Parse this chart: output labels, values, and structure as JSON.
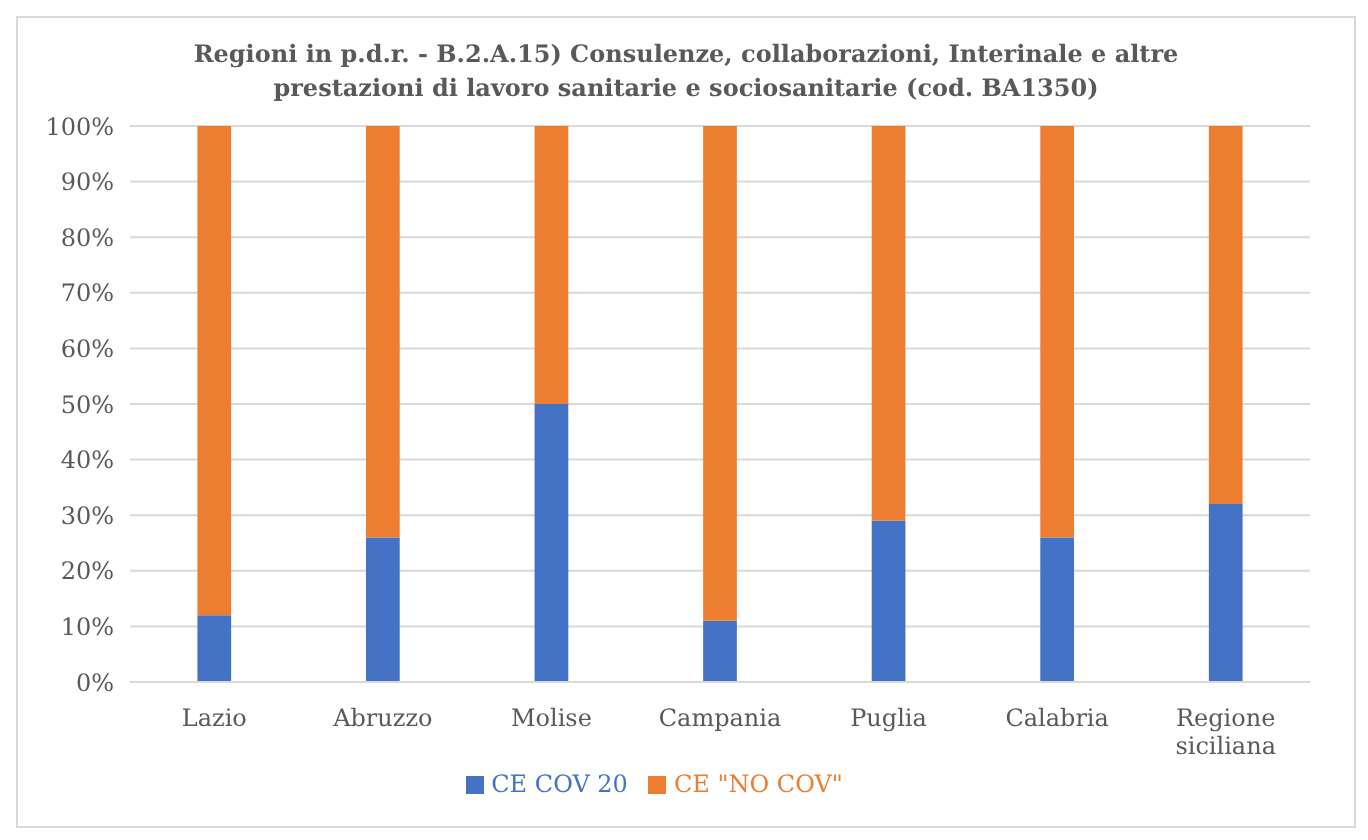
{
  "chart_data": {
    "type": "bar",
    "stacked": true,
    "title": "Regioni in p.d.r. - B.2.A.15) Consulenze, collaborazioni, Interinale e altre prestazioni di lavoro sanitarie e sociosanitarie (cod. BA1350)",
    "categories": [
      "Lazio",
      "Abruzzo",
      "Molise",
      "Campania",
      "Puglia",
      "Calabria",
      "Regione siciliana"
    ],
    "series": [
      {
        "name": "CE COV 20",
        "color": "#4472c4",
        "values": [
          12,
          26,
          50,
          11,
          29,
          26,
          32
        ]
      },
      {
        "name": "CE \"NO COV\"",
        "color": "#ed7d31",
        "values": [
          88,
          74,
          50,
          89,
          71,
          74,
          68
        ]
      }
    ],
    "ylim": [
      0,
      100
    ],
    "yticks": [
      {
        "value": 0,
        "label": "0%"
      },
      {
        "value": 10,
        "label": "10%"
      },
      {
        "value": 20,
        "label": "20%"
      },
      {
        "value": 30,
        "label": "30%"
      },
      {
        "value": 40,
        "label": "40%"
      },
      {
        "value": 50,
        "label": "50%"
      },
      {
        "value": 60,
        "label": "60%"
      },
      {
        "value": 70,
        "label": "70%"
      },
      {
        "value": 80,
        "label": "80%"
      },
      {
        "value": 90,
        "label": "90%"
      },
      {
        "value": 100,
        "label": "100%"
      }
    ],
    "grid": "y",
    "legend": "bottom"
  }
}
